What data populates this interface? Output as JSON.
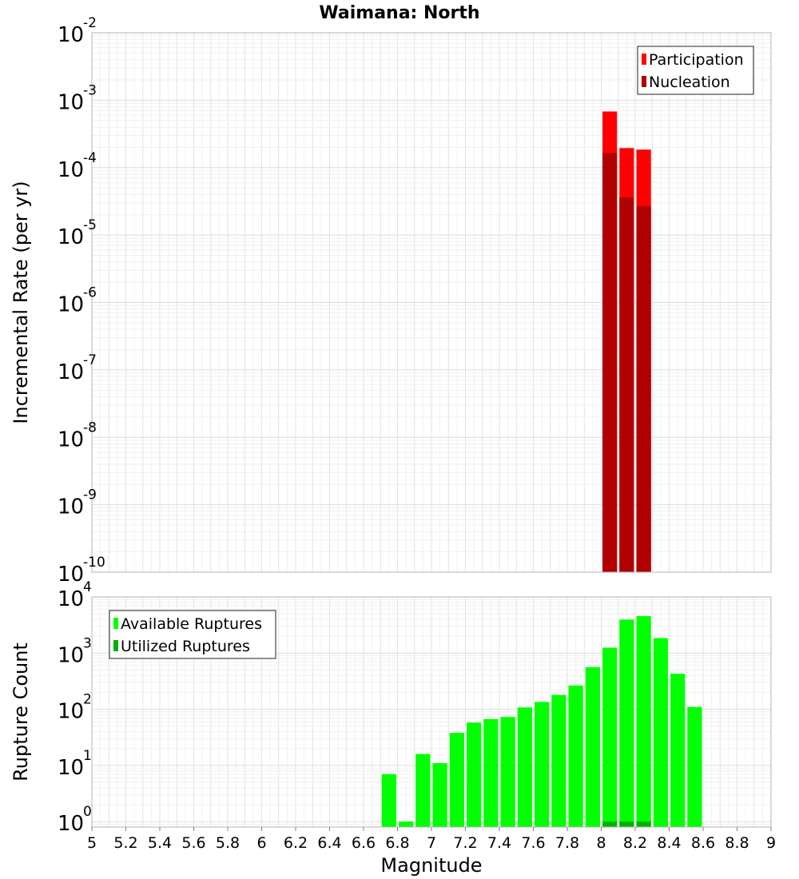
{
  "chart_data": [
    {
      "type": "bar",
      "title": "Waimana: North",
      "xlabel": "",
      "ylabel": "Incremental Rate (per yr)",
      "yscale": "log",
      "xlim": [
        5,
        9
      ],
      "ylim": [
        1e-10,
        0.01
      ],
      "grid": true,
      "bar_width": 0.1,
      "legend_position": "top-right",
      "series": [
        {
          "name": "Participation",
          "color": "#ff0000",
          "x": [
            8.05,
            8.15,
            8.25
          ],
          "values": [
            0.00068,
            0.000195,
            0.000185
          ]
        },
        {
          "name": "Nucleation",
          "color": "#b00000",
          "x": [
            8.05,
            8.15,
            8.25
          ],
          "values": [
            0.000165,
            3.6e-05,
            2.7e-05
          ]
        }
      ],
      "yticks": [
        {
          "base": "10",
          "exp": "-10"
        },
        {
          "base": "10",
          "exp": "-9"
        },
        {
          "base": "10",
          "exp": "-8"
        },
        {
          "base": "10",
          "exp": "-7"
        },
        {
          "base": "10",
          "exp": "-6"
        },
        {
          "base": "10",
          "exp": "-5"
        },
        {
          "base": "10",
          "exp": "-4"
        },
        {
          "base": "10",
          "exp": "-3"
        },
        {
          "base": "10",
          "exp": "-2"
        }
      ]
    },
    {
      "type": "bar",
      "title": "",
      "xlabel": "Magnitude",
      "ylabel": "Rupture Count",
      "yscale": "log",
      "xlim": [
        5,
        9
      ],
      "ylim": [
        0.8,
        10000
      ],
      "grid": true,
      "bar_width": 0.1,
      "legend_position": "top-left",
      "series": [
        {
          "name": "Available Ruptures",
          "color": "#00ff00",
          "x": [
            6.75,
            6.85,
            6.95,
            7.05,
            7.15,
            7.25,
            7.35,
            7.45,
            7.55,
            7.65,
            7.75,
            7.85,
            7.95,
            8.05,
            8.15,
            8.25,
            8.35,
            8.45,
            8.55
          ],
          "values": [
            7,
            1,
            16,
            11,
            38,
            58,
            67,
            73,
            108,
            135,
            180,
            265,
            560,
            1250,
            3950,
            4550,
            1850,
            430,
            110
          ]
        },
        {
          "name": "Utilized Ruptures",
          "color": "#00b000",
          "x": [
            8.05,
            8.15,
            8.25
          ],
          "values": [
            1,
            1,
            1
          ]
        }
      ],
      "yticks": [
        {
          "base": "10",
          "exp": "0"
        },
        {
          "base": "10",
          "exp": "1"
        },
        {
          "base": "10",
          "exp": "2"
        },
        {
          "base": "10",
          "exp": "3"
        },
        {
          "base": "10",
          "exp": "4"
        }
      ],
      "xticks": [
        "5",
        "5.2",
        "5.4",
        "5.6",
        "5.8",
        "6",
        "6.2",
        "6.4",
        "6.6",
        "6.8",
        "7",
        "7.2",
        "7.4",
        "7.6",
        "7.8",
        "8",
        "8.2",
        "8.4",
        "8.6",
        "8.8",
        "9"
      ]
    }
  ]
}
